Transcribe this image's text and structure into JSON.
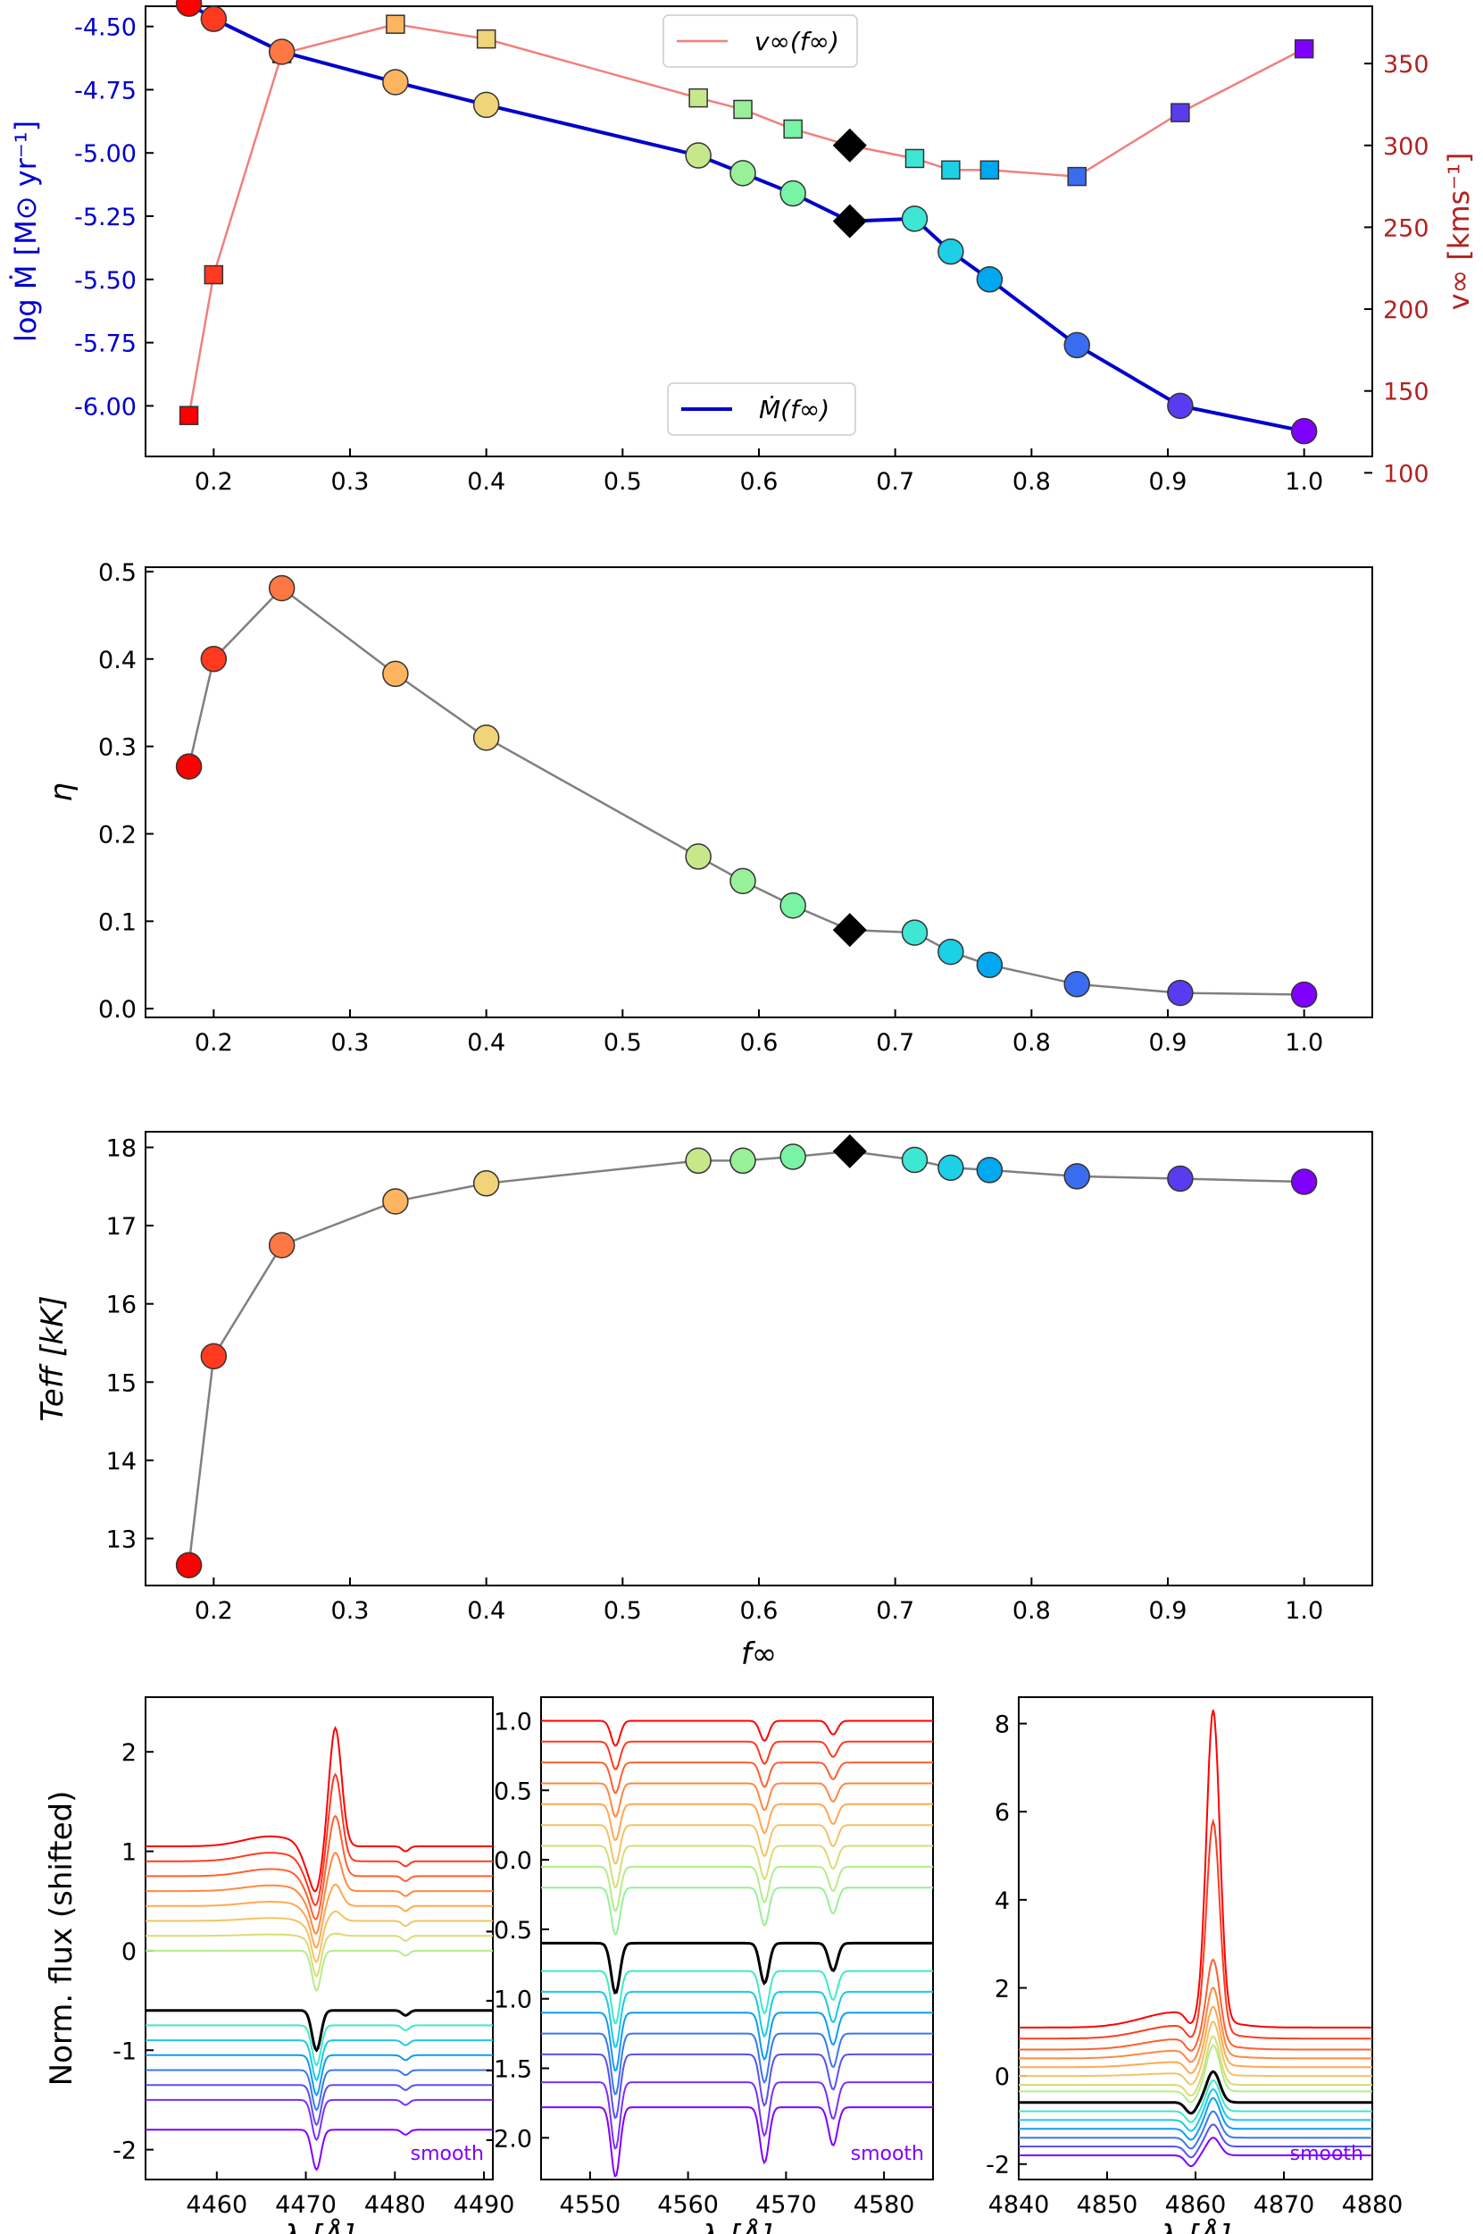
{
  "colors": {
    "f": [
      0.181818,
      0.2,
      0.25,
      0.333333,
      0.4,
      0.555556,
      0.588235,
      0.625,
      0.666667,
      0.714286,
      0.740741,
      0.769231,
      0.833333,
      0.909091,
      1.0
    ],
    "marker_colors": [
      "#ff0000",
      "#ff3a1e",
      "#ff7843",
      "#ffb45f",
      "#f0d47a",
      "#c6e88a",
      "#98f098",
      "#78f4a4",
      "#000000",
      "#3ee6d4",
      "#1cd0e6",
      "#00a8f0",
      "#3a6cf0",
      "#5a3cf0",
      "#8000ff"
    ],
    "mdot_line": "#0000cc",
    "vinf_line": "#f08080",
    "left_axis_mdot": "#0000cc",
    "right_axis_vinf": "#b22222",
    "connector": "#808080"
  },
  "chart_data": [
    {
      "type": "line",
      "xlabel": "",
      "ylabel": "log Ṁ [M⊙ yr⁻¹]",
      "y2label": "v∞ [kms⁻¹]",
      "xlim": [
        0.15,
        1.05
      ],
      "ylim": [
        -6.2,
        -4.42
      ],
      "y2lim": [
        110,
        385
      ],
      "xticks": [
        "0.2",
        "0.3",
        "0.4",
        "0.5",
        "0.6",
        "0.7",
        "0.8",
        "0.9",
        "1.0"
      ],
      "yticks": [
        "-4.50",
        "-4.75",
        "-5.00",
        "-5.25",
        "-5.50",
        "-5.75",
        "-6.00"
      ],
      "y2ticks": [
        "350",
        "300",
        "250",
        "200",
        "150",
        "100"
      ],
      "series": [
        {
          "name": "Ṁ(f∞)",
          "axis": "left",
          "marker": "circle",
          "x": [
            0.181818,
            0.2,
            0.25,
            0.333333,
            0.4,
            0.555556,
            0.588235,
            0.625,
            0.666667,
            0.714286,
            0.740741,
            0.769231,
            0.833333,
            0.909091,
            1.0
          ],
          "y": [
            -4.41,
            -4.47,
            -4.6,
            -4.72,
            -4.81,
            -5.01,
            -5.08,
            -5.16,
            -5.27,
            -5.26,
            -5.39,
            -5.5,
            -5.76,
            -6.0,
            -6.1
          ]
        },
        {
          "name": "v∞(f∞)",
          "axis": "right",
          "marker": "square",
          "x": [
            0.181818,
            0.2,
            0.25,
            0.333333,
            0.4,
            0.555556,
            0.588235,
            0.625,
            0.666667,
            0.714286,
            0.740741,
            0.769231,
            0.833333,
            0.909091,
            1.0
          ],
          "y": [
            135,
            221,
            356,
            374,
            365,
            329,
            322,
            310,
            300,
            292,
            285,
            285,
            281,
            320,
            359
          ]
        }
      ],
      "legend": [
        {
          "label": "v∞(f∞)",
          "position": "top-center"
        },
        {
          "label": "Ṁ(f∞)",
          "position": "bottom-center"
        }
      ]
    },
    {
      "type": "line",
      "xlabel": "",
      "ylabel": "η",
      "xlim": [
        0.15,
        1.05
      ],
      "ylim": [
        -0.01,
        0.505
      ],
      "xticks": [
        "0.2",
        "0.3",
        "0.4",
        "0.5",
        "0.6",
        "0.7",
        "0.8",
        "0.9",
        "1.0"
      ],
      "yticks": [
        "0.0",
        "0.1",
        "0.2",
        "0.3",
        "0.4",
        "0.5"
      ],
      "series": [
        {
          "marker": "circle",
          "x": [
            0.181818,
            0.2,
            0.25,
            0.333333,
            0.4,
            0.555556,
            0.588235,
            0.625,
            0.666667,
            0.714286,
            0.740741,
            0.769231,
            0.833333,
            0.909091,
            1.0
          ],
          "y": [
            0.277,
            0.4,
            0.481,
            0.383,
            0.31,
            0.174,
            0.146,
            0.118,
            0.09,
            0.087,
            0.065,
            0.05,
            0.028,
            0.018,
            0.016
          ]
        }
      ]
    },
    {
      "type": "line",
      "xlabel": "f∞",
      "ylabel": "Teff [kK]",
      "xlim": [
        0.15,
        1.05
      ],
      "ylim": [
        12.4,
        18.2
      ],
      "xticks": [
        "0.2",
        "0.3",
        "0.4",
        "0.5",
        "0.6",
        "0.7",
        "0.8",
        "0.9",
        "1.0"
      ],
      "yticks": [
        "13",
        "14",
        "15",
        "16",
        "17",
        "18"
      ],
      "series": [
        {
          "marker": "circle",
          "x": [
            0.181818,
            0.2,
            0.25,
            0.333333,
            0.4,
            0.555556,
            0.588235,
            0.625,
            0.666667,
            0.714286,
            0.740741,
            0.769231,
            0.833333,
            0.909091,
            1.0
          ],
          "y": [
            12.66,
            15.33,
            16.75,
            17.31,
            17.54,
            17.83,
            17.83,
            17.88,
            17.95,
            17.84,
            17.74,
            17.71,
            17.63,
            17.6,
            17.56
          ]
        }
      ]
    },
    {
      "type": "line",
      "xlabel": "λ [Å]",
      "ylabel": "Norm. flux (shifted)",
      "xlim": [
        4452,
        4491
      ],
      "ylim": [
        -2.3,
        2.55
      ],
      "xticks": [
        "4460",
        "4470",
        "4480",
        "4490"
      ],
      "yticks": [
        "-2",
        "-1",
        "0",
        "1",
        "2"
      ],
      "offsets": [
        1.05,
        0.9,
        0.75,
        0.6,
        0.45,
        0.3,
        0.15,
        0.0,
        -0.6,
        -0.75,
        -0.9,
        -1.05,
        -1.2,
        -1.35,
        -1.5,
        -1.8
      ],
      "note": "smooth"
    },
    {
      "type": "line",
      "xlabel": "λ [Å]",
      "ylabel": "",
      "xlim": [
        4545,
        4585
      ],
      "ylim": [
        -2.3,
        1.17
      ],
      "xticks": [
        "4550",
        "4560",
        "4570",
        "4580"
      ],
      "yticks": [
        "1.0",
        "0.5",
        "0.0",
        "-0.5",
        "-1.0",
        "-1.5",
        "-2.0"
      ],
      "offsets": [
        1.0,
        0.85,
        0.7,
        0.55,
        0.4,
        0.25,
        0.1,
        -0.05,
        -0.2,
        -0.6,
        -0.8,
        -0.95,
        -1.1,
        -1.25,
        -1.4,
        -1.6,
        -1.78
      ],
      "note": "smooth"
    },
    {
      "type": "line",
      "xlabel": "λ [Å]",
      "ylabel": "",
      "xlim": [
        4840,
        4880
      ],
      "ylim": [
        -2.35,
        8.6
      ],
      "xticks": [
        "4840",
        "4850",
        "4860",
        "4870",
        "4880"
      ],
      "yticks": [
        "-2",
        "0",
        "2",
        "4",
        "6",
        "8"
      ],
      "offsets": [
        1.1,
        0.85,
        0.6,
        0.4,
        0.2,
        0.0,
        -0.2,
        -0.35,
        -0.6,
        -0.8,
        -1.0,
        -1.2,
        -1.4,
        -1.6,
        -1.8
      ],
      "peaks": [
        8.1,
        5.6,
        2.5,
        1.9,
        1.5,
        1.2,
        0.9,
        0.7,
        0.1,
        -0.1,
        -0.3,
        -0.5,
        -0.8,
        -1.1,
        -1.4
      ],
      "note": "smooth"
    }
  ]
}
